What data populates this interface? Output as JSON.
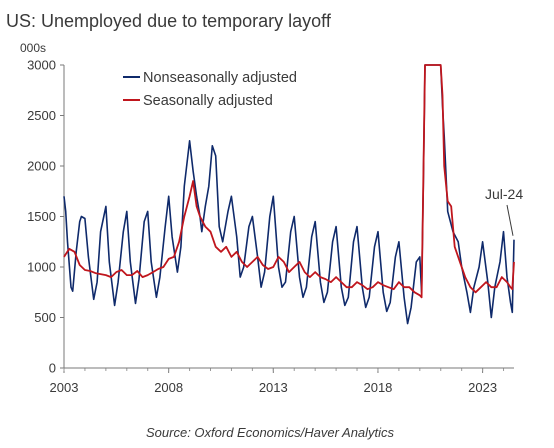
{
  "chart_data": {
    "type": "line",
    "title": "US: Unemployed due to temporary layoff",
    "unit_label": "000s",
    "xlabel": "",
    "ylabel": "",
    "ylim": [
      0,
      3000
    ],
    "yticks": [
      "0",
      "500",
      "1000",
      "1500",
      "2000",
      "2500",
      "3000"
    ],
    "xlim": [
      "2003-01",
      "2024-07"
    ],
    "xticks": [
      "2003",
      "2008",
      "2013",
      "2018",
      "2023"
    ],
    "grid": false,
    "legend_position": "top-left",
    "annotation": {
      "text": "Jul-24"
    },
    "source": "Source: Oxford Economics/Haver Analytics",
    "series": [
      {
        "name": "Nonseasonally adjusted",
        "color": "#0f2a6b",
        "points": [
          [
            "2003-01",
            1700
          ],
          [
            "2003-02",
            1550
          ],
          [
            "2003-03",
            1250
          ],
          [
            "2003-05",
            800
          ],
          [
            "2003-06",
            760
          ],
          [
            "2003-08",
            1150
          ],
          [
            "2003-10",
            1450
          ],
          [
            "2003-11",
            1500
          ],
          [
            "2004-01",
            1480
          ],
          [
            "2004-03",
            1100
          ],
          [
            "2004-06",
            680
          ],
          [
            "2004-08",
            850
          ],
          [
            "2004-10",
            1350
          ],
          [
            "2005-01",
            1600
          ],
          [
            "2005-03",
            1050
          ],
          [
            "2005-06",
            620
          ],
          [
            "2005-08",
            850
          ],
          [
            "2005-11",
            1350
          ],
          [
            "2006-01",
            1550
          ],
          [
            "2006-03",
            1050
          ],
          [
            "2006-06",
            640
          ],
          [
            "2006-08",
            880
          ],
          [
            "2006-11",
            1450
          ],
          [
            "2007-01",
            1550
          ],
          [
            "2007-03",
            1050
          ],
          [
            "2007-06",
            700
          ],
          [
            "2007-08",
            900
          ],
          [
            "2007-11",
            1400
          ],
          [
            "2008-01",
            1700
          ],
          [
            "2008-03",
            1300
          ],
          [
            "2008-06",
            950
          ],
          [
            "2008-08",
            1200
          ],
          [
            "2008-10",
            1800
          ],
          [
            "2009-01",
            2250
          ],
          [
            "2009-03",
            1950
          ],
          [
            "2009-05",
            1700
          ],
          [
            "2009-07",
            1500
          ],
          [
            "2009-08",
            1350
          ],
          [
            "2009-10",
            1600
          ],
          [
            "2009-12",
            1800
          ],
          [
            "2010-02",
            2200
          ],
          [
            "2010-04",
            2100
          ],
          [
            "2010-06",
            1400
          ],
          [
            "2010-08",
            1250
          ],
          [
            "2010-11",
            1550
          ],
          [
            "2011-01",
            1700
          ],
          [
            "2011-04",
            1300
          ],
          [
            "2011-06",
            900
          ],
          [
            "2011-08",
            1000
          ],
          [
            "2011-11",
            1400
          ],
          [
            "2012-01",
            1500
          ],
          [
            "2012-04",
            1100
          ],
          [
            "2012-06",
            800
          ],
          [
            "2012-08",
            950
          ],
          [
            "2012-11",
            1500
          ],
          [
            "2013-01",
            1700
          ],
          [
            "2013-04",
            1000
          ],
          [
            "2013-06",
            800
          ],
          [
            "2013-08",
            850
          ],
          [
            "2013-11",
            1350
          ],
          [
            "2014-01",
            1500
          ],
          [
            "2014-04",
            900
          ],
          [
            "2014-06",
            700
          ],
          [
            "2014-08",
            800
          ],
          [
            "2014-11",
            1300
          ],
          [
            "2015-01",
            1450
          ],
          [
            "2015-04",
            850
          ],
          [
            "2015-06",
            650
          ],
          [
            "2015-08",
            750
          ],
          [
            "2015-11",
            1250
          ],
          [
            "2016-01",
            1400
          ],
          [
            "2016-04",
            800
          ],
          [
            "2016-06",
            620
          ],
          [
            "2016-08",
            700
          ],
          [
            "2016-11",
            1250
          ],
          [
            "2017-01",
            1400
          ],
          [
            "2017-04",
            800
          ],
          [
            "2017-06",
            600
          ],
          [
            "2017-08",
            700
          ],
          [
            "2017-11",
            1200
          ],
          [
            "2018-01",
            1350
          ],
          [
            "2018-04",
            750
          ],
          [
            "2018-06",
            560
          ],
          [
            "2018-08",
            650
          ],
          [
            "2018-11",
            1100
          ],
          [
            "2019-01",
            1250
          ],
          [
            "2019-04",
            700
          ],
          [
            "2019-06",
            440
          ],
          [
            "2019-08",
            600
          ],
          [
            "2019-11",
            1050
          ],
          [
            "2020-01",
            1100
          ],
          [
            "2020-02",
            750
          ],
          [
            "2020-03",
            1800
          ],
          [
            "2020-04",
            3000
          ],
          [
            "2021-01",
            3000
          ],
          [
            "2021-02",
            2600
          ],
          [
            "2021-03",
            2300
          ],
          [
            "2021-05",
            1550
          ],
          [
            "2021-08",
            1350
          ],
          [
            "2021-11",
            1250
          ],
          [
            "2022-01",
            1000
          ],
          [
            "2022-04",
            750
          ],
          [
            "2022-06",
            550
          ],
          [
            "2022-08",
            800
          ],
          [
            "2022-11",
            1000
          ],
          [
            "2023-01",
            1250
          ],
          [
            "2023-04",
            850
          ],
          [
            "2023-06",
            500
          ],
          [
            "2023-08",
            800
          ],
          [
            "2023-11",
            1050
          ],
          [
            "2024-01",
            1350
          ],
          [
            "2024-03",
            900
          ],
          [
            "2024-05",
            650
          ],
          [
            "2024-06",
            550
          ],
          [
            "2024-07",
            1270
          ]
        ]
      },
      {
        "name": "Seasonally adjusted",
        "color": "#c0161d",
        "points": [
          [
            "2003-01",
            1100
          ],
          [
            "2003-04",
            1180
          ],
          [
            "2003-07",
            1150
          ],
          [
            "2003-10",
            1020
          ],
          [
            "2004-01",
            970
          ],
          [
            "2004-04",
            960
          ],
          [
            "2004-07",
            940
          ],
          [
            "2004-10",
            930
          ],
          [
            "2005-01",
            920
          ],
          [
            "2005-04",
            900
          ],
          [
            "2005-07",
            950
          ],
          [
            "2005-10",
            970
          ],
          [
            "2006-01",
            920
          ],
          [
            "2006-04",
            920
          ],
          [
            "2006-07",
            960
          ],
          [
            "2006-10",
            900
          ],
          [
            "2007-01",
            920
          ],
          [
            "2007-04",
            950
          ],
          [
            "2007-07",
            980
          ],
          [
            "2007-10",
            1000
          ],
          [
            "2008-01",
            1080
          ],
          [
            "2008-04",
            1100
          ],
          [
            "2008-07",
            1250
          ],
          [
            "2008-10",
            1500
          ],
          [
            "2009-01",
            1700
          ],
          [
            "2009-03",
            1850
          ],
          [
            "2009-05",
            1600
          ],
          [
            "2009-07",
            1500
          ],
          [
            "2009-10",
            1400
          ],
          [
            "2010-01",
            1350
          ],
          [
            "2010-04",
            1200
          ],
          [
            "2010-07",
            1150
          ],
          [
            "2010-10",
            1200
          ],
          [
            "2011-01",
            1100
          ],
          [
            "2011-04",
            1150
          ],
          [
            "2011-07",
            1050
          ],
          [
            "2011-10",
            1000
          ],
          [
            "2012-01",
            1050
          ],
          [
            "2012-04",
            1100
          ],
          [
            "2012-07",
            1020
          ],
          [
            "2012-10",
            980
          ],
          [
            "2013-01",
            1000
          ],
          [
            "2013-04",
            1100
          ],
          [
            "2013-07",
            1050
          ],
          [
            "2013-10",
            950
          ],
          [
            "2014-01",
            1000
          ],
          [
            "2014-04",
            1050
          ],
          [
            "2014-07",
            950
          ],
          [
            "2014-10",
            900
          ],
          [
            "2015-01",
            950
          ],
          [
            "2015-04",
            900
          ],
          [
            "2015-07",
            880
          ],
          [
            "2015-10",
            850
          ],
          [
            "2016-01",
            900
          ],
          [
            "2016-04",
            850
          ],
          [
            "2016-07",
            800
          ],
          [
            "2016-10",
            800
          ],
          [
            "2017-01",
            850
          ],
          [
            "2017-04",
            820
          ],
          [
            "2017-07",
            780
          ],
          [
            "2017-10",
            800
          ],
          [
            "2018-01",
            850
          ],
          [
            "2018-04",
            820
          ],
          [
            "2018-07",
            800
          ],
          [
            "2018-10",
            780
          ],
          [
            "2019-01",
            850
          ],
          [
            "2019-04",
            800
          ],
          [
            "2019-07",
            800
          ],
          [
            "2019-10",
            750
          ],
          [
            "2020-01",
            720
          ],
          [
            "2020-02",
            700
          ],
          [
            "2020-03",
            1850
          ],
          [
            "2020-04",
            3000
          ],
          [
            "2021-01",
            3000
          ],
          [
            "2021-02",
            2700
          ],
          [
            "2021-03",
            2000
          ],
          [
            "2021-05",
            1650
          ],
          [
            "2021-07",
            1600
          ],
          [
            "2021-09",
            1200
          ],
          [
            "2021-12",
            1050
          ],
          [
            "2022-03",
            900
          ],
          [
            "2022-06",
            800
          ],
          [
            "2022-09",
            750
          ],
          [
            "2022-12",
            800
          ],
          [
            "2023-03",
            850
          ],
          [
            "2023-06",
            800
          ],
          [
            "2023-09",
            800
          ],
          [
            "2023-12",
            900
          ],
          [
            "2024-03",
            850
          ],
          [
            "2024-05",
            800
          ],
          [
            "2024-06",
            780
          ],
          [
            "2024-07",
            1050
          ]
        ]
      }
    ]
  }
}
